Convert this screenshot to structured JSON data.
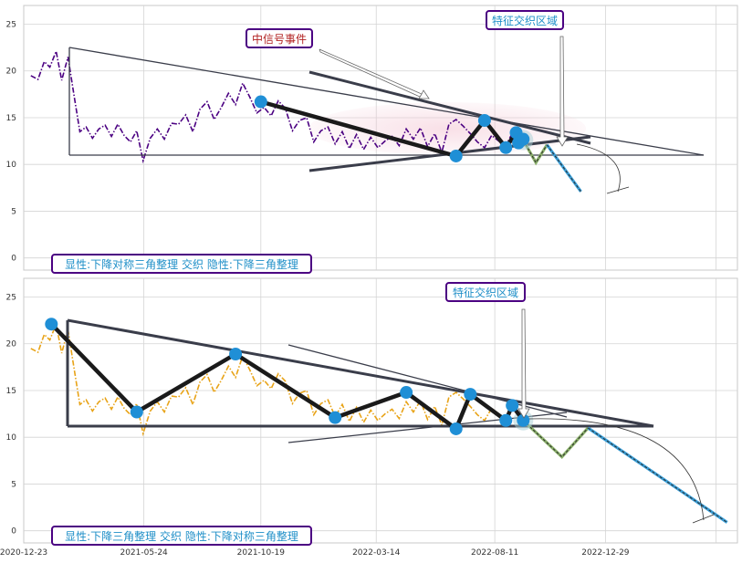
{
  "chart_data": [
    {
      "type": "line",
      "panel": "top",
      "ylim": [
        -1.3,
        27
      ],
      "yticks": [
        0,
        5,
        10,
        15,
        20,
        25
      ],
      "grid": true,
      "x_range": [
        "2020-12-23",
        "2023-06-14"
      ],
      "series": [
        {
          "style": "dash-dot",
          "color": "#4b0082",
          "x": [
            "2021-01-01",
            "2021-01-10",
            "2021-01-18",
            "2021-01-25",
            "2021-02-02",
            "2021-02-09",
            "2021-02-17",
            "2021-02-25",
            "2021-03-04",
            "2021-03-12",
            "2021-03-20",
            "2021-03-28",
            "2021-04-05",
            "2021-04-13",
            "2021-04-21",
            "2021-04-29",
            "2021-05-07",
            "2021-05-15",
            "2021-05-23",
            "2021-06-01",
            "2021-06-10",
            "2021-06-19",
            "2021-06-28",
            "2021-07-07",
            "2021-07-16",
            "2021-07-25",
            "2021-08-03",
            "2021-08-12",
            "2021-08-21",
            "2021-08-30",
            "2021-09-08",
            "2021-09-17",
            "2021-09-26",
            "2021-10-05",
            "2021-10-14",
            "2021-10-23",
            "2021-11-01",
            "2021-11-10",
            "2021-11-19",
            "2021-11-28",
            "2021-12-07",
            "2021-12-16",
            "2021-12-25",
            "2022-01-03",
            "2022-01-12",
            "2022-01-21",
            "2022-01-30",
            "2022-02-08",
            "2022-02-17",
            "2022-02-26",
            "2022-03-07",
            "2022-03-16",
            "2022-03-25",
            "2022-04-03",
            "2022-04-12",
            "2022-04-21",
            "2022-04-30",
            "2022-05-09",
            "2022-05-18",
            "2022-05-27",
            "2022-06-05",
            "2022-06-14",
            "2022-06-23",
            "2022-07-02",
            "2022-07-11",
            "2022-07-20",
            "2022-07-29",
            "2022-08-07",
            "2022-08-16",
            "2022-08-25",
            "2022-09-03",
            "2022-09-10",
            "2022-09-16"
          ],
          "y": [
            19.5,
            19.1,
            21.0,
            20.4,
            22.1,
            19.0,
            21.5,
            17.2,
            13.5,
            14.0,
            12.8,
            13.8,
            14.2,
            13.0,
            14.3,
            13.1,
            12.4,
            13.6,
            10.4,
            12.8,
            13.8,
            12.7,
            14.4,
            14.3,
            15.3,
            13.5,
            15.9,
            16.7,
            14.8,
            16.1,
            17.6,
            16.4,
            18.7,
            17.2,
            15.5,
            16.1,
            15.2,
            16.8,
            16.0,
            13.6,
            14.7,
            15.0,
            12.4,
            13.6,
            14.0,
            12.2,
            13.5,
            11.7,
            13.2,
            11.6,
            12.9,
            11.8,
            12.5,
            13.0,
            12.0,
            13.8,
            12.7,
            13.9,
            11.9,
            13.3,
            11.3,
            14.3,
            14.8,
            14.1,
            13.3,
            12.4,
            11.8,
            13.1,
            12.5,
            12.0,
            13.5,
            12.6,
            13.0
          ]
        }
      ],
      "pattern_points": [
        {
          "x": "2021-10-19",
          "y": 16.7
        },
        {
          "x": "2022-06-23",
          "y": 10.9
        },
        {
          "x": "2022-07-29",
          "y": 14.7
        },
        {
          "x": "2022-08-25",
          "y": 11.8
        },
        {
          "x": "2022-09-07",
          "y": 13.4
        },
        {
          "x": "2022-09-10",
          "y": 12.3
        },
        {
          "x": "2022-09-16",
          "y": 12.7
        }
      ],
      "forecast_green": [
        {
          "x": "2022-09-16",
          "y": 12.6
        },
        {
          "x": "2022-10-02",
          "y": 10.2
        },
        {
          "x": "2022-10-16",
          "y": 12.1
        }
      ],
      "forecast_blue": [
        {
          "x": "2022-10-16",
          "y": 12.1
        },
        {
          "x": "2022-11-28",
          "y": 7.1
        }
      ],
      "title_box": "显性:下降对称三角整理 交织 隐性:下降三角整理",
      "annotations": [
        {
          "label": "中信号事件",
          "color": "#b22222"
        },
        {
          "label": "特征交织区域",
          "color": "#1f8fc8"
        }
      ]
    },
    {
      "type": "line",
      "panel": "bottom",
      "ylim": [
        -1.3,
        27
      ],
      "yticks": [
        0,
        5,
        10,
        15,
        20,
        25
      ],
      "grid": true,
      "x_range": [
        "2020-12-23",
        "2023-06-14"
      ],
      "xtick_labels": [
        "2020-12-23",
        "2021-05-24",
        "2021-10-19",
        "2022-03-14",
        "2022-08-11",
        "2022-12-29"
      ],
      "series": [
        {
          "style": "dash-dot",
          "color": "#e8a317",
          "x": [
            "2021-01-01",
            "2021-01-10",
            "2021-01-18",
            "2021-01-25",
            "2021-02-02",
            "2021-02-09",
            "2021-02-17",
            "2021-02-25",
            "2021-03-04",
            "2021-03-12",
            "2021-03-20",
            "2021-03-28",
            "2021-04-05",
            "2021-04-13",
            "2021-04-21",
            "2021-04-29",
            "2021-05-07",
            "2021-05-15",
            "2021-05-23",
            "2021-06-01",
            "2021-06-10",
            "2021-06-19",
            "2021-06-28",
            "2021-07-07",
            "2021-07-16",
            "2021-07-25",
            "2021-08-03",
            "2021-08-12",
            "2021-08-21",
            "2021-08-30",
            "2021-09-08",
            "2021-09-17",
            "2021-09-26",
            "2021-10-05",
            "2021-10-14",
            "2021-10-23",
            "2021-11-01",
            "2021-11-10",
            "2021-11-19",
            "2021-11-28",
            "2021-12-07",
            "2021-12-16",
            "2021-12-25",
            "2022-01-03",
            "2022-01-12",
            "2022-01-21",
            "2022-01-30",
            "2022-02-08",
            "2022-02-17",
            "2022-02-26",
            "2022-03-07",
            "2022-03-16",
            "2022-03-25",
            "2022-04-03",
            "2022-04-12",
            "2022-04-21",
            "2022-04-30",
            "2022-05-09",
            "2022-05-18",
            "2022-05-27",
            "2022-06-05",
            "2022-06-14",
            "2022-06-23",
            "2022-07-02",
            "2022-07-11",
            "2022-07-20",
            "2022-07-29",
            "2022-08-07",
            "2022-08-16",
            "2022-08-25",
            "2022-09-03",
            "2022-09-10",
            "2022-09-16"
          ],
          "y": [
            19.5,
            19.1,
            21.0,
            20.4,
            22.1,
            19.0,
            21.5,
            17.2,
            13.5,
            14.0,
            12.8,
            13.8,
            14.2,
            13.0,
            14.3,
            13.1,
            12.4,
            13.6,
            10.4,
            12.8,
            13.8,
            12.7,
            14.4,
            14.3,
            15.3,
            13.5,
            15.9,
            16.7,
            14.8,
            16.1,
            17.6,
            16.4,
            18.7,
            17.2,
            15.5,
            16.1,
            15.2,
            16.8,
            16.0,
            13.6,
            14.7,
            15.0,
            12.4,
            13.6,
            14.0,
            12.2,
            13.5,
            11.7,
            13.2,
            11.6,
            12.9,
            11.8,
            12.5,
            13.0,
            12.0,
            13.8,
            12.7,
            13.9,
            11.9,
            13.3,
            11.3,
            14.3,
            14.8,
            14.1,
            13.3,
            12.4,
            11.8,
            13.1,
            12.5,
            12.0,
            13.5,
            12.6,
            13.0
          ]
        }
      ],
      "pattern_points": [
        {
          "x": "2021-01-27",
          "y": 22.1
        },
        {
          "x": "2021-05-15",
          "y": 12.7
        },
        {
          "x": "2021-09-17",
          "y": 18.9
        },
        {
          "x": "2022-01-21",
          "y": 12.1
        },
        {
          "x": "2022-04-21",
          "y": 14.8
        },
        {
          "x": "2022-06-23",
          "y": 10.9
        },
        {
          "x": "2022-07-11",
          "y": 14.6
        },
        {
          "x": "2022-08-25",
          "y": 11.8
        },
        {
          "x": "2022-09-02",
          "y": 13.4
        },
        {
          "x": "2022-09-16",
          "y": 11.8
        }
      ],
      "forecast_green": [
        {
          "x": "2022-09-16",
          "y": 11.8
        },
        {
          "x": "2022-11-04",
          "y": 7.9
        },
        {
          "x": "2022-12-07",
          "y": 11.0
        }
      ],
      "forecast_blue": [
        {
          "x": "2022-12-07",
          "y": 11.0
        },
        {
          "x": "2023-06-01",
          "y": 0.9
        }
      ],
      "title_box": "显性:下降三角整理 交织 隐性:下降对称三角整理",
      "annotations": [
        {
          "label": "特征交织区域",
          "color": "#1f8fc8"
        }
      ]
    }
  ]
}
